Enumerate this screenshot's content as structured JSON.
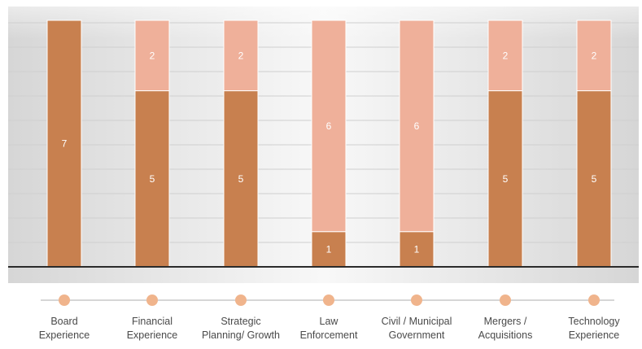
{
  "chart_data": {
    "type": "bar",
    "stacked": true,
    "categories": [
      [
        "Board",
        "Experience"
      ],
      [
        "Financial",
        "Experience"
      ],
      [
        "Strategic",
        "Planning/ Growth"
      ],
      [
        "Law",
        "Enforcement"
      ],
      [
        "Civil / Municipal",
        "Government"
      ],
      [
        "Mergers /",
        "Acquisitions"
      ],
      [
        "Technology",
        "Experience"
      ]
    ],
    "series": [
      {
        "values": [
          7,
          5,
          5,
          1,
          1,
          5,
          5
        ],
        "color": "#c8804f"
      },
      {
        "values": [
          0,
          2,
          2,
          6,
          6,
          2,
          2
        ],
        "color": "#efb09a"
      }
    ],
    "ylim": [
      0,
      7
    ],
    "grid": true,
    "legend": "none",
    "title": "",
    "xlabel": "",
    "ylabel": ""
  },
  "colors": {
    "background_light": "#f7f7f7",
    "background_dark": "#dcdcdc",
    "axis": "#2b2b2b",
    "gridline": "#cfcfcf",
    "timeline_line": "#c9c9c9",
    "marker": "#f0b48c",
    "label_text": "#4a4a4a",
    "value_text": "#ffffff"
  }
}
